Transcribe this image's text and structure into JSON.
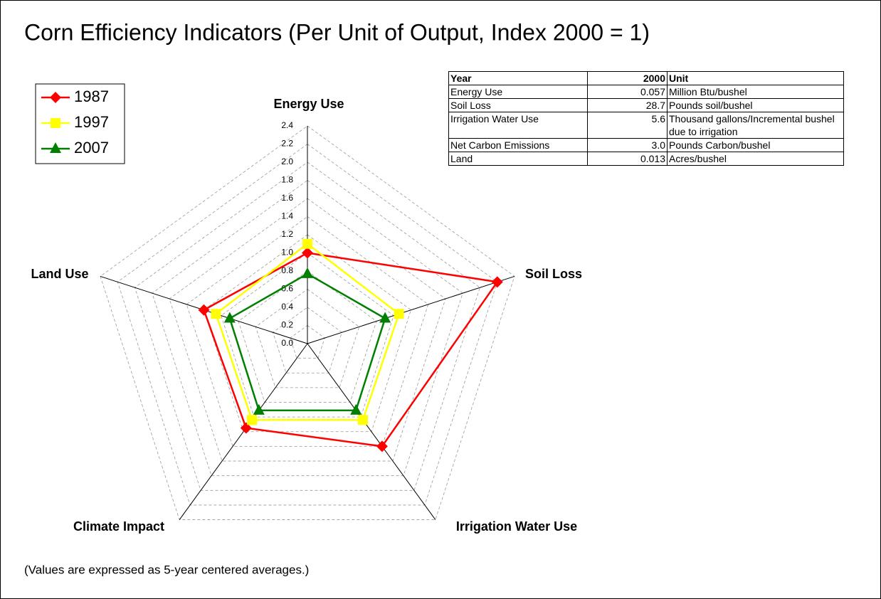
{
  "chart_data": {
    "type": "radar",
    "title": "Corn Efficiency Indicators (Per Unit of Output, Index 2000 = 1)",
    "categories": [
      "Energy Use",
      "Soil Loss",
      "Irrigation Water Use",
      "Climate Impact",
      "Land Use"
    ],
    "series": [
      {
        "name": "1987",
        "color": "#ff0000",
        "marker": "diamond",
        "values": [
          1.0,
          2.2,
          1.4,
          1.15,
          1.2
        ]
      },
      {
        "name": "1997",
        "color": "#ffff00",
        "marker": "square",
        "values": [
          1.1,
          1.06,
          1.04,
          1.04,
          1.06
        ]
      },
      {
        "name": "2007",
        "color": "#008000",
        "marker": "triangle",
        "values": [
          0.77,
          0.9,
          0.91,
          0.91,
          0.9
        ]
      }
    ],
    "rlim": [
      0,
      2.4
    ],
    "rticks": [
      {
        "value": 0,
        "label": "0.0"
      },
      0.2,
      0.4,
      0.6,
      0.8,
      {
        "value": 1,
        "label": "1.0"
      },
      1.2,
      1.4,
      1.6,
      1.8,
      {
        "value": 2,
        "label": "2.0"
      },
      2.2,
      2.4
    ],
    "grid": true,
    "legend": "upper left",
    "note": "(Values are expressed as 5-year centered averages.)"
  },
  "table": {
    "header": [
      "Year",
      "2000",
      "Unit"
    ],
    "rows": [
      [
        "Energy Use",
        "0.057",
        "Million Btu/bushel"
      ],
      [
        "Soil Loss",
        "28.7",
        "Pounds soil/bushel"
      ],
      [
        "Irrigation Water Use",
        "5.6",
        "Thousand gallons/Incremental bushel due to irrigation"
      ],
      [
        "Net Carbon Emissions",
        "3.0",
        "Pounds Carbon/bushel"
      ],
      [
        "Land",
        "0.013",
        "Acres/bushel"
      ]
    ]
  }
}
